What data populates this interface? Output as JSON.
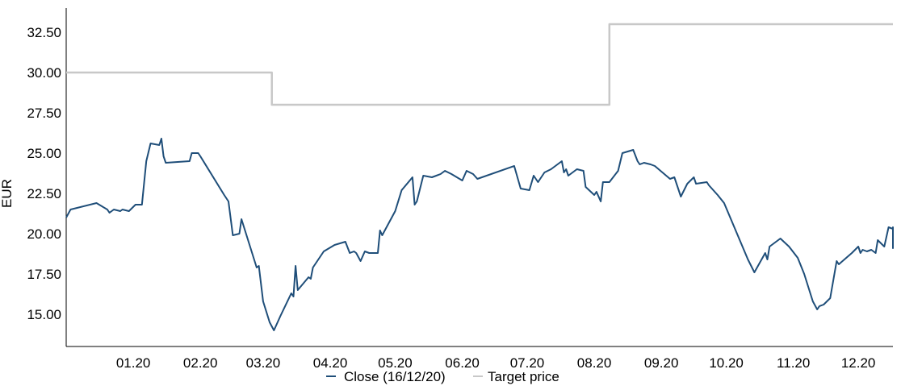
{
  "chart_data": {
    "type": "line",
    "title": "",
    "xlabel": "",
    "ylabel": "EUR",
    "ylim": [
      13.0,
      34.0
    ],
    "yticks": [
      "15.00",
      "17.50",
      "20.00",
      "22.50",
      "25.00",
      "27.50",
      "30.00",
      "32.50"
    ],
    "ytick_values": [
      15.0,
      17.5,
      20.0,
      22.5,
      25.0,
      27.5,
      30.0,
      32.5
    ],
    "xlim": [
      "2019-12-01",
      "2020-12-17"
    ],
    "xticks": [
      {
        "label": "01.20",
        "date": "2020-01-01"
      },
      {
        "label": "02.20",
        "date": "2020-02-01"
      },
      {
        "label": "03.20",
        "date": "2020-03-01"
      },
      {
        "label": "04.20",
        "date": "2020-04-01"
      },
      {
        "label": "05.20",
        "date": "2020-05-01"
      },
      {
        "label": "06.20",
        "date": "2020-06-01"
      },
      {
        "label": "07.20",
        "date": "2020-07-01"
      },
      {
        "label": "08.20",
        "date": "2020-08-01"
      },
      {
        "label": "09.20",
        "date": "2020-09-01"
      },
      {
        "label": "10.20",
        "date": "2020-10-01"
      },
      {
        "label": "11.20",
        "date": "2020-11-01"
      },
      {
        "label": "12.20",
        "date": "2020-12-01"
      }
    ],
    "grid": false,
    "legend_position": "bottom",
    "series": [
      {
        "name": "Close (16/12/20)",
        "color": "#1f4e79",
        "points": [
          [
            "2019-12-01",
            21.0
          ],
          [
            "2019-12-03",
            21.5
          ],
          [
            "2019-12-15",
            21.9
          ],
          [
            "2019-12-20",
            21.5
          ],
          [
            "2019-12-21",
            21.3
          ],
          [
            "2019-12-23",
            21.5
          ],
          [
            "2019-12-26",
            21.4
          ],
          [
            "2019-12-27",
            21.5
          ],
          [
            "2019-12-30",
            21.4
          ],
          [
            "2020-01-02",
            21.8
          ],
          [
            "2020-01-05",
            21.8
          ],
          [
            "2020-01-07",
            24.5
          ],
          [
            "2020-01-09",
            25.6
          ],
          [
            "2020-01-13",
            25.5
          ],
          [
            "2020-01-14",
            25.9
          ],
          [
            "2020-01-15",
            24.8
          ],
          [
            "2020-01-16",
            24.4
          ],
          [
            "2020-01-27",
            24.5
          ],
          [
            "2020-01-28",
            25.0
          ],
          [
            "2020-01-31",
            25.0
          ],
          [
            "2020-02-01",
            24.8
          ],
          [
            "2020-02-12",
            22.4
          ],
          [
            "2020-02-14",
            22.0
          ],
          [
            "2020-02-16",
            19.9
          ],
          [
            "2020-02-19",
            20.0
          ],
          [
            "2020-02-20",
            20.9
          ],
          [
            "2020-02-27",
            17.9
          ],
          [
            "2020-02-28",
            18.0
          ],
          [
            "2020-03-01",
            15.8
          ],
          [
            "2020-03-04",
            14.5
          ],
          [
            "2020-03-06",
            14.0
          ],
          [
            "2020-03-09",
            14.9
          ],
          [
            "2020-03-14",
            16.3
          ],
          [
            "2020-03-15",
            16.1
          ],
          [
            "2020-03-16",
            18.0
          ],
          [
            "2020-03-17",
            16.5
          ],
          [
            "2020-03-22",
            17.3
          ],
          [
            "2020-03-23",
            17.2
          ],
          [
            "2020-03-24",
            17.9
          ],
          [
            "2020-03-29",
            18.9
          ],
          [
            "2020-04-03",
            19.3
          ],
          [
            "2020-04-08",
            19.5
          ],
          [
            "2020-04-10",
            18.8
          ],
          [
            "2020-04-12",
            18.9
          ],
          [
            "2020-04-13",
            18.8
          ],
          [
            "2020-04-15",
            18.3
          ],
          [
            "2020-04-17",
            18.9
          ],
          [
            "2020-04-19",
            18.8
          ],
          [
            "2020-04-23",
            18.8
          ],
          [
            "2020-04-24",
            20.2
          ],
          [
            "2020-04-25",
            19.9
          ],
          [
            "2020-05-01",
            21.4
          ],
          [
            "2020-05-04",
            22.7
          ],
          [
            "2020-05-09",
            23.5
          ],
          [
            "2020-05-10",
            21.8
          ],
          [
            "2020-05-11",
            22.0
          ],
          [
            "2020-05-14",
            23.6
          ],
          [
            "2020-05-18",
            23.5
          ],
          [
            "2020-05-20",
            23.6
          ],
          [
            "2020-05-22",
            23.7
          ],
          [
            "2020-05-24",
            23.9
          ],
          [
            "2020-05-27",
            23.7
          ],
          [
            "2020-06-01",
            23.3
          ],
          [
            "2020-06-03",
            23.9
          ],
          [
            "2020-06-06",
            23.7
          ],
          [
            "2020-06-08",
            23.4
          ],
          [
            "2020-06-25",
            24.2
          ],
          [
            "2020-06-28",
            22.8
          ],
          [
            "2020-07-02",
            22.7
          ],
          [
            "2020-07-04",
            23.6
          ],
          [
            "2020-07-06",
            23.2
          ],
          [
            "2020-07-09",
            23.8
          ],
          [
            "2020-07-12",
            24.0
          ],
          [
            "2020-07-17",
            24.5
          ],
          [
            "2020-07-18",
            23.8
          ],
          [
            "2020-07-19",
            24.0
          ],
          [
            "2020-07-20",
            23.6
          ],
          [
            "2020-07-24",
            24.0
          ],
          [
            "2020-07-27",
            23.9
          ],
          [
            "2020-07-28",
            22.9
          ],
          [
            "2020-08-01",
            22.4
          ],
          [
            "2020-08-02",
            22.6
          ],
          [
            "2020-08-04",
            22.0
          ],
          [
            "2020-08-05",
            23.2
          ],
          [
            "2020-08-08",
            23.2
          ],
          [
            "2020-08-12",
            23.9
          ],
          [
            "2020-08-14",
            25.0
          ],
          [
            "2020-08-19",
            25.2
          ],
          [
            "2020-08-21",
            24.5
          ],
          [
            "2020-08-22",
            24.3
          ],
          [
            "2020-08-24",
            24.4
          ],
          [
            "2020-08-27",
            24.3
          ],
          [
            "2020-08-29",
            24.2
          ],
          [
            "2020-09-05",
            23.4
          ],
          [
            "2020-09-07",
            23.5
          ],
          [
            "2020-09-10",
            22.3
          ],
          [
            "2020-09-13",
            23.1
          ],
          [
            "2020-09-16",
            23.5
          ],
          [
            "2020-09-17",
            23.1
          ],
          [
            "2020-09-22",
            23.2
          ],
          [
            "2020-09-23",
            23.0
          ],
          [
            "2020-09-27",
            22.4
          ],
          [
            "2020-09-30",
            21.9
          ],
          [
            "2020-10-11",
            18.4
          ],
          [
            "2020-10-14",
            17.6
          ],
          [
            "2020-10-19",
            18.8
          ],
          [
            "2020-10-20",
            18.4
          ],
          [
            "2020-10-21",
            19.2
          ],
          [
            "2020-10-26",
            19.7
          ],
          [
            "2020-10-30",
            19.2
          ],
          [
            "2020-11-03",
            18.5
          ],
          [
            "2020-11-06",
            17.5
          ],
          [
            "2020-11-10",
            15.8
          ],
          [
            "2020-11-12",
            15.3
          ],
          [
            "2020-11-13",
            15.5
          ],
          [
            "2020-11-15",
            15.6
          ],
          [
            "2020-11-18",
            16.0
          ],
          [
            "2020-11-21",
            18.3
          ],
          [
            "2020-11-22",
            18.1
          ],
          [
            "2020-11-28",
            18.8
          ],
          [
            "2020-12-01",
            19.2
          ],
          [
            "2020-12-02",
            18.8
          ],
          [
            "2020-12-03",
            19.0
          ],
          [
            "2020-12-05",
            18.9
          ],
          [
            "2020-12-07",
            19.0
          ],
          [
            "2020-12-09",
            18.8
          ],
          [
            "2020-12-10",
            19.6
          ],
          [
            "2020-12-13",
            19.2
          ],
          [
            "2020-12-15",
            20.4
          ],
          [
            "2020-12-17",
            20.3
          ],
          [
            "2020-12-19",
            20.4
          ],
          [
            "2020-12-24",
            19.2
          ],
          [
            "2020-12-28",
            19.1
          ],
          [
            "2020-12-31",
            19.2
          ]
        ]
      },
      {
        "name": "Target price",
        "color": "#c8c8c8",
        "points": [
          [
            "2019-12-01",
            30.0
          ],
          [
            "2020-03-05",
            30.0
          ],
          [
            "2020-03-05",
            28.0
          ],
          [
            "2020-08-08",
            28.0
          ],
          [
            "2020-08-08",
            33.0
          ],
          [
            "2021-01-01",
            33.0
          ]
        ]
      }
    ]
  }
}
